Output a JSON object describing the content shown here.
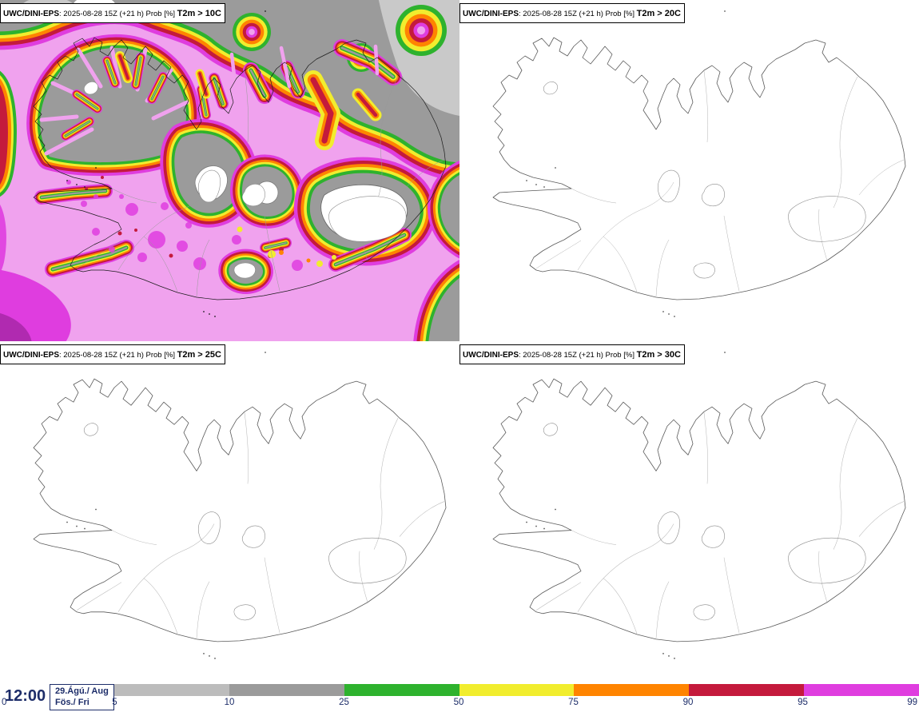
{
  "panels": [
    {
      "model": "UWC/DINI-EPS",
      "meta": ": 2025-08-28 15Z (+21 h) Prob [%] ",
      "threshold": "T2m > 10C"
    },
    {
      "model": "UWC/DINI-EPS",
      "meta": ": 2025-08-28 15Z (+21 h) Prob [%] ",
      "threshold": "T2m > 20C"
    },
    {
      "model": "UWC/DINI-EPS",
      "meta": ": 2025-08-28 15Z (+21 h) Prob [%] ",
      "threshold": "T2m > 25C"
    },
    {
      "model": "UWC/DINI-EPS",
      "meta": ": 2025-08-28 15Z (+21 h) Prob [%] ",
      "threshold": "T2m > 30C"
    }
  ],
  "footer": {
    "time": "12:00",
    "date_line1": "29.Ágú./ Aug",
    "date_line2": "Fös./ Fri"
  },
  "colorbar": {
    "ticks": [
      "0",
      "5",
      "10",
      "25",
      "50",
      "75",
      "90",
      "95",
      "99"
    ],
    "segments": [
      {
        "range": "0-5",
        "color": "#ffffff"
      },
      {
        "range": "5-10",
        "color": "#bcbcbc"
      },
      {
        "range": "10-25",
        "color": "#9b9b9b"
      },
      {
        "range": "25-50",
        "color": "#2eb22e"
      },
      {
        "range": "50-75",
        "color": "#f1ed2e"
      },
      {
        "range": "75-90",
        "color": "#ff8400"
      },
      {
        "range": "90-95",
        "color": "#c41a3c"
      },
      {
        "range": "95-99",
        "color": "#df3ddf"
      }
    ]
  },
  "map_colors": {
    "ocean_high_prob": "#f0a2ee",
    "light_gray": "#c9c9c9",
    "dark_magenta": "#b02ab0",
    "glacier_white": "#ffffff"
  }
}
